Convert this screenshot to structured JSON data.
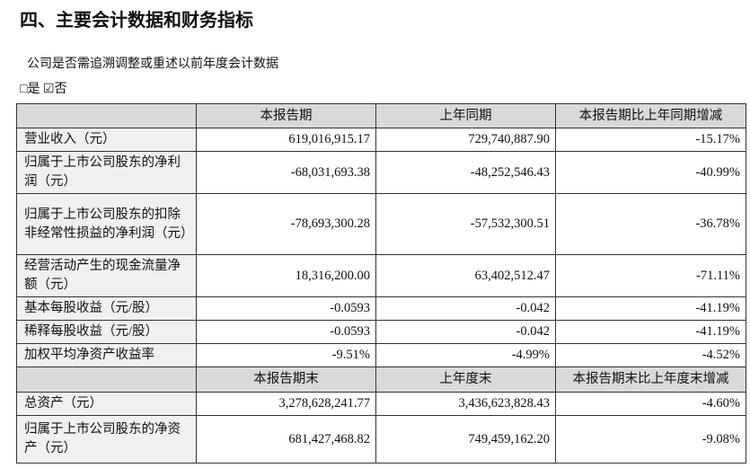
{
  "header": {
    "title": "四、主要会计数据和财务指标",
    "question": "公司是否需追溯调整或重述以前年度会计数据",
    "answer": "□是 ☑否"
  },
  "table": {
    "header": [
      "本报告期",
      "上年同期",
      "本报告期比上年同期增减"
    ],
    "rows": [
      [
        "营业收入（元）",
        "619,016,915.17",
        "729,740,887.90",
        "-15.17%"
      ],
      [
        "归属于上市公司股东的净利润（元）",
        "-68,031,693.38",
        "-48,252,546.43",
        "-40.99%"
      ],
      [
        "归属于上市公司股东的扣除非经常性损益的净利润（元）",
        "-78,693,300.28",
        "-57,532,300.51",
        "-36.78%"
      ],
      [
        "经营活动产生的现金流量净额（元）",
        "18,316,200.00",
        "63,402,512.47",
        "-71.11%"
      ],
      [
        "基本每股收益（元/股）",
        "-0.0593",
        "-0.042",
        "-41.19%"
      ],
      [
        "稀释每股收益（元/股）",
        "-0.0593",
        "-0.042",
        "-41.19%"
      ],
      [
        "加权平均净资产收益率",
        "-9.51%",
        "-4.99%",
        "-4.52%"
      ]
    ],
    "header2": [
      "本报告期末",
      "上年度末",
      "本报告期末比上年度末增减"
    ],
    "rows2": [
      [
        "总资产（元）",
        "3,278,628,241.77",
        "3,436,623,828.43",
        "-4.60%"
      ],
      [
        "归属于上市公司股东的净资产（元）",
        "681,427,468.82",
        "749,459,162.20",
        "-9.08%"
      ]
    ]
  }
}
